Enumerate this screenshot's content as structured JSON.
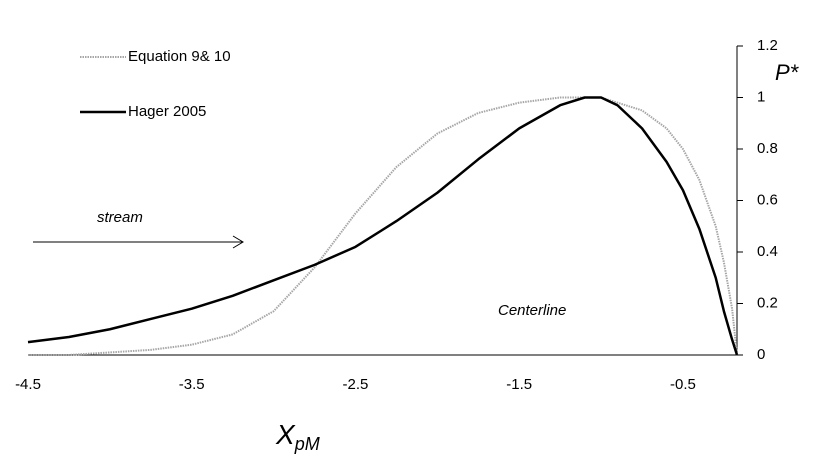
{
  "chart_data": {
    "type": "line",
    "x": [
      -4.5,
      -4.25,
      -4,
      -3.75,
      -3.5,
      -3.25,
      -3,
      -2.75,
      -2.5,
      -2.25,
      -2,
      -1.75,
      -1.5,
      -1.25,
      -1.1,
      -1,
      -0.9,
      -0.75,
      -0.6,
      -0.5,
      -0.4,
      -0.3,
      -0.25,
      -0.2,
      -0.17
    ],
    "series": [
      {
        "name": "Equation 9& 10",
        "color": "#a6a6a6",
        "dash": true,
        "values": [
          0,
          0,
          0.01,
          0.02,
          0.04,
          0.08,
          0.17,
          0.34,
          0.55,
          0.73,
          0.86,
          0.94,
          0.98,
          1.0,
          1.0,
          1.0,
          0.98,
          0.95,
          0.88,
          0.8,
          0.68,
          0.5,
          0.36,
          0.18,
          0
        ]
      },
      {
        "name": "Hager 2005",
        "color": "#000000",
        "dash": false,
        "values": [
          0.05,
          0.07,
          0.1,
          0.14,
          0.18,
          0.23,
          0.29,
          0.35,
          0.42,
          0.52,
          0.63,
          0.76,
          0.88,
          0.97,
          1.0,
          1.0,
          0.97,
          0.88,
          0.75,
          0.64,
          0.49,
          0.3,
          0.17,
          0.06,
          0
        ]
      }
    ],
    "xlim": [
      -4.5,
      -0.17
    ],
    "xticks": [
      -4.5,
      -3.5,
      -2.5,
      -1.5,
      -0.5
    ],
    "ylim": [
      0,
      1.2
    ],
    "yticks": [
      0,
      0.2,
      0.4,
      0.6,
      0.8,
      1,
      1.2
    ],
    "x_label": {
      "main": "X",
      "sub": "pM"
    },
    "y_label": "P*",
    "annotations": [
      "stream",
      "Centerline"
    ]
  }
}
